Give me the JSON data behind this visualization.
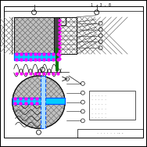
{
  "bg_color": "#ffffff",
  "outer_border_color": "#f0f000",
  "inner_border_color": "#000000",
  "title_text": "1.3.8",
  "blue_color": "#0055ff",
  "cyan_color": "#00ccff",
  "magenta_color": "#ff00ff",
  "green_color": "#007700",
  "gray_fill": "#c0c0c0",
  "dark_color": "#111111",
  "hatch_color": "#666666",
  "dark_gray": "#444444"
}
